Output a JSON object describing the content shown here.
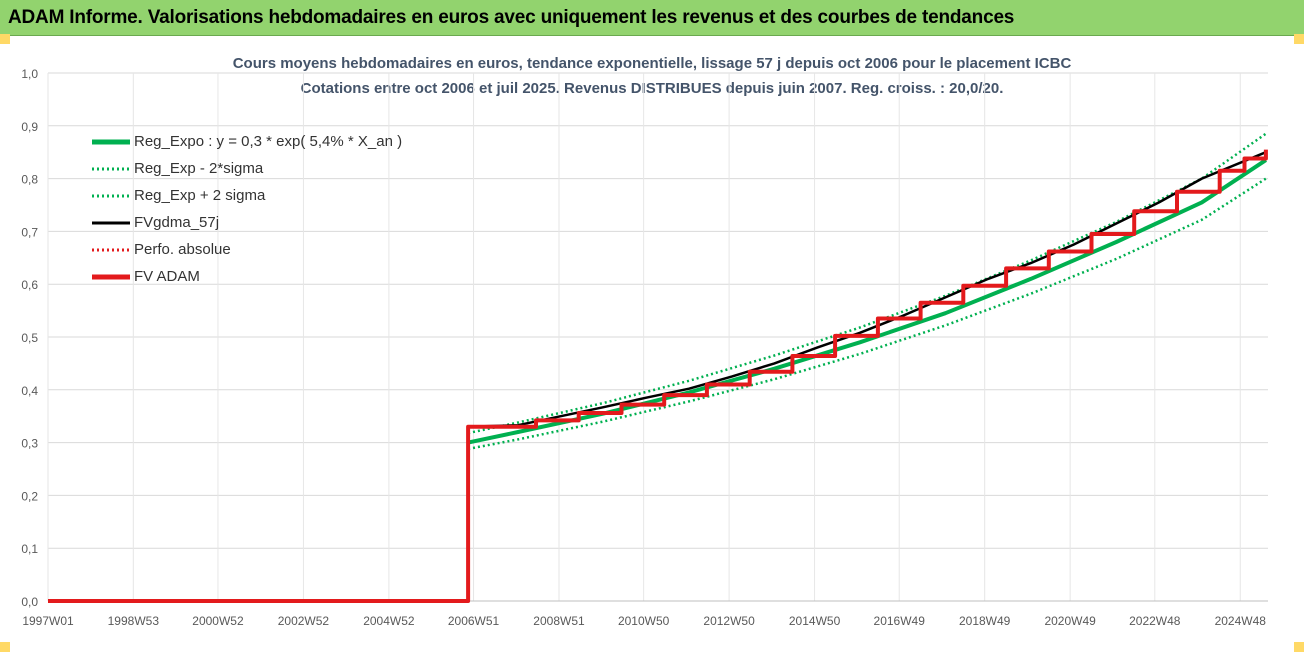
{
  "header": {
    "title": "ADAM Informe. Valorisations hebdomadaires en euros avec uniquement les revenus et des courbes de tendances"
  },
  "chart_data": {
    "type": "line",
    "title": "Cours moyens hebdomadaires en euros, tendance exponentielle, lissage 57 j depuis oct 2006 pour le placement ICBC",
    "subtitle": "Cotations entre oct 2006 et juil 2025. Revenus DISTRIBUES depuis juin 2007. Reg. croiss. : 20,0/20.",
    "xlabel": "",
    "ylabel": "",
    "xlim": [
      "1997W01",
      "2025W30"
    ],
    "ylim": [
      0,
      1.0
    ],
    "grid": true,
    "legend_position": "top-left",
    "y_ticks": [
      "0,0",
      "0,1",
      "0,2",
      "0,3",
      "0,4",
      "0,5",
      "0,6",
      "0,7",
      "0,8",
      "0,9",
      "1,0"
    ],
    "x_ticks": [
      "1997W01",
      "1998W53",
      "2000W52",
      "2002W52",
      "2004W52",
      "2006W51",
      "2008W51",
      "2010W50",
      "2012W50",
      "2014W50",
      "2016W49",
      "2018W49",
      "2020W49",
      "2022W48",
      "2024W48"
    ],
    "series": [
      {
        "name": "Reg_Expo : y = 0,3 * exp( 5,4% *  X_an )",
        "color": "#00b050",
        "style": "solid",
        "x": [
          2006.83,
          2008,
          2010,
          2012,
          2014,
          2016,
          2018,
          2020,
          2022,
          2024,
          2025.5
        ],
        "y": [
          0.3,
          0.32,
          0.355,
          0.395,
          0.44,
          0.49,
          0.545,
          0.61,
          0.68,
          0.755,
          0.835
        ]
      },
      {
        "name": "Reg_Exp - 2*sigma",
        "color": "#00b050",
        "style": "dotted",
        "x": [
          2006.83,
          2008,
          2010,
          2012,
          2014,
          2016,
          2018,
          2020,
          2022,
          2024,
          2025.5
        ],
        "y": [
          0.288,
          0.306,
          0.34,
          0.378,
          0.42,
          0.468,
          0.522,
          0.582,
          0.648,
          0.722,
          0.8
        ]
      },
      {
        "name": "Reg_Exp + 2 sigma",
        "color": "#00b050",
        "style": "dotted",
        "x": [
          2006.83,
          2008,
          2010,
          2012,
          2014,
          2016,
          2018,
          2020,
          2022,
          2024,
          2025.5
        ],
        "y": [
          0.318,
          0.338,
          0.375,
          0.417,
          0.465,
          0.518,
          0.578,
          0.645,
          0.718,
          0.8,
          0.885
        ]
      },
      {
        "name": "FVgdma_57j",
        "color": "#000000",
        "style": "solid",
        "x": [
          2006.83,
          2008,
          2009,
          2010,
          2011,
          2012,
          2013,
          2014,
          2015,
          2016,
          2017,
          2018,
          2019,
          2020,
          2021,
          2022,
          2023,
          2024,
          2025.5
        ],
        "y": [
          0.33,
          0.333,
          0.35,
          0.367,
          0.385,
          0.402,
          0.425,
          0.45,
          0.48,
          0.508,
          0.54,
          0.575,
          0.61,
          0.64,
          0.675,
          0.715,
          0.755,
          0.8,
          0.85
        ]
      },
      {
        "name": "Perfo. absolue",
        "color": "#e31a1c",
        "style": "dotted",
        "x": [],
        "y": []
      },
      {
        "name": "FV ADAM",
        "color": "#e31a1c",
        "style": "solid",
        "x": [
          1997.0,
          2006.83,
          2006.83,
          2007.42,
          2008.42,
          2009.42,
          2010.42,
          2011.42,
          2012.42,
          2013.42,
          2014.42,
          2015.42,
          2016.42,
          2017.42,
          2018.42,
          2019.42,
          2020.42,
          2021.42,
          2022.42,
          2023.42,
          2024.42,
          2025.0,
          2025.5
        ],
        "y": [
          0.0,
          0.0,
          0.33,
          0.33,
          0.342,
          0.356,
          0.372,
          0.39,
          0.41,
          0.434,
          0.464,
          0.502,
          0.535,
          0.565,
          0.597,
          0.63,
          0.662,
          0.695,
          0.738,
          0.775,
          0.815,
          0.838,
          0.855
        ]
      }
    ]
  }
}
